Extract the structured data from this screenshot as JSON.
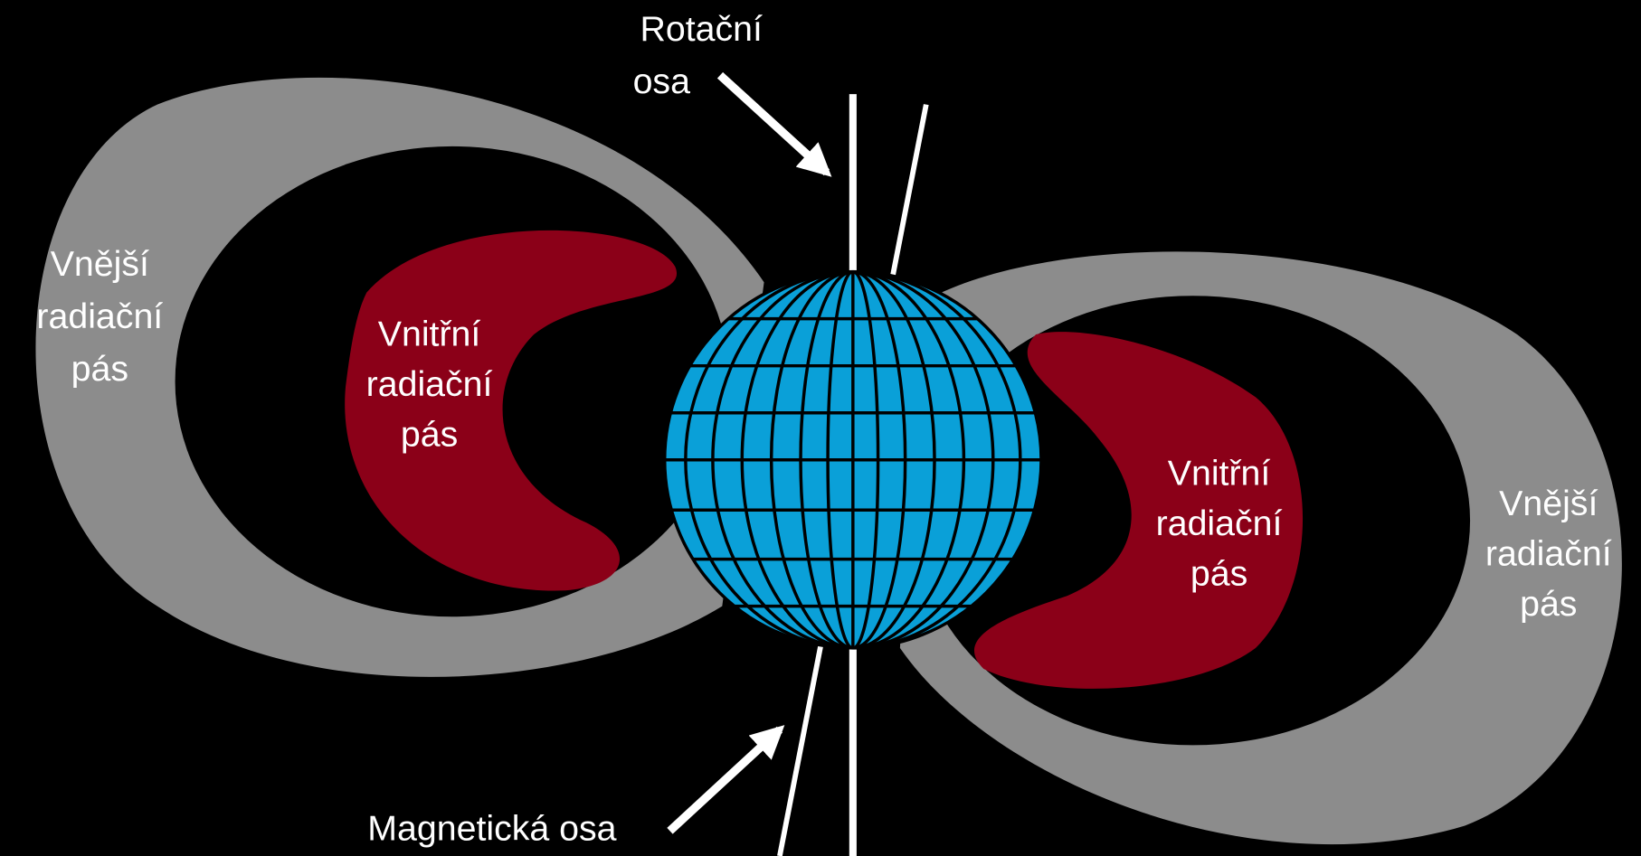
{
  "labels": {
    "rotation_axis": {
      "lines": [
        "Rotační",
        "osa"
      ]
    },
    "magnetic_axis": {
      "lines": [
        "Magnetická osa"
      ]
    },
    "outer_belt_left": {
      "lines": [
        "Vnější",
        "radiační",
        "pás"
      ]
    },
    "inner_belt_left": {
      "lines": [
        "Vnitřní",
        "radiační",
        "pás"
      ]
    },
    "inner_belt_right": {
      "lines": [
        "Vnitřní",
        "radiační",
        "pás"
      ]
    },
    "outer_belt_right": {
      "lines": [
        "Vnější",
        "radiační",
        "pás"
      ]
    }
  }
}
